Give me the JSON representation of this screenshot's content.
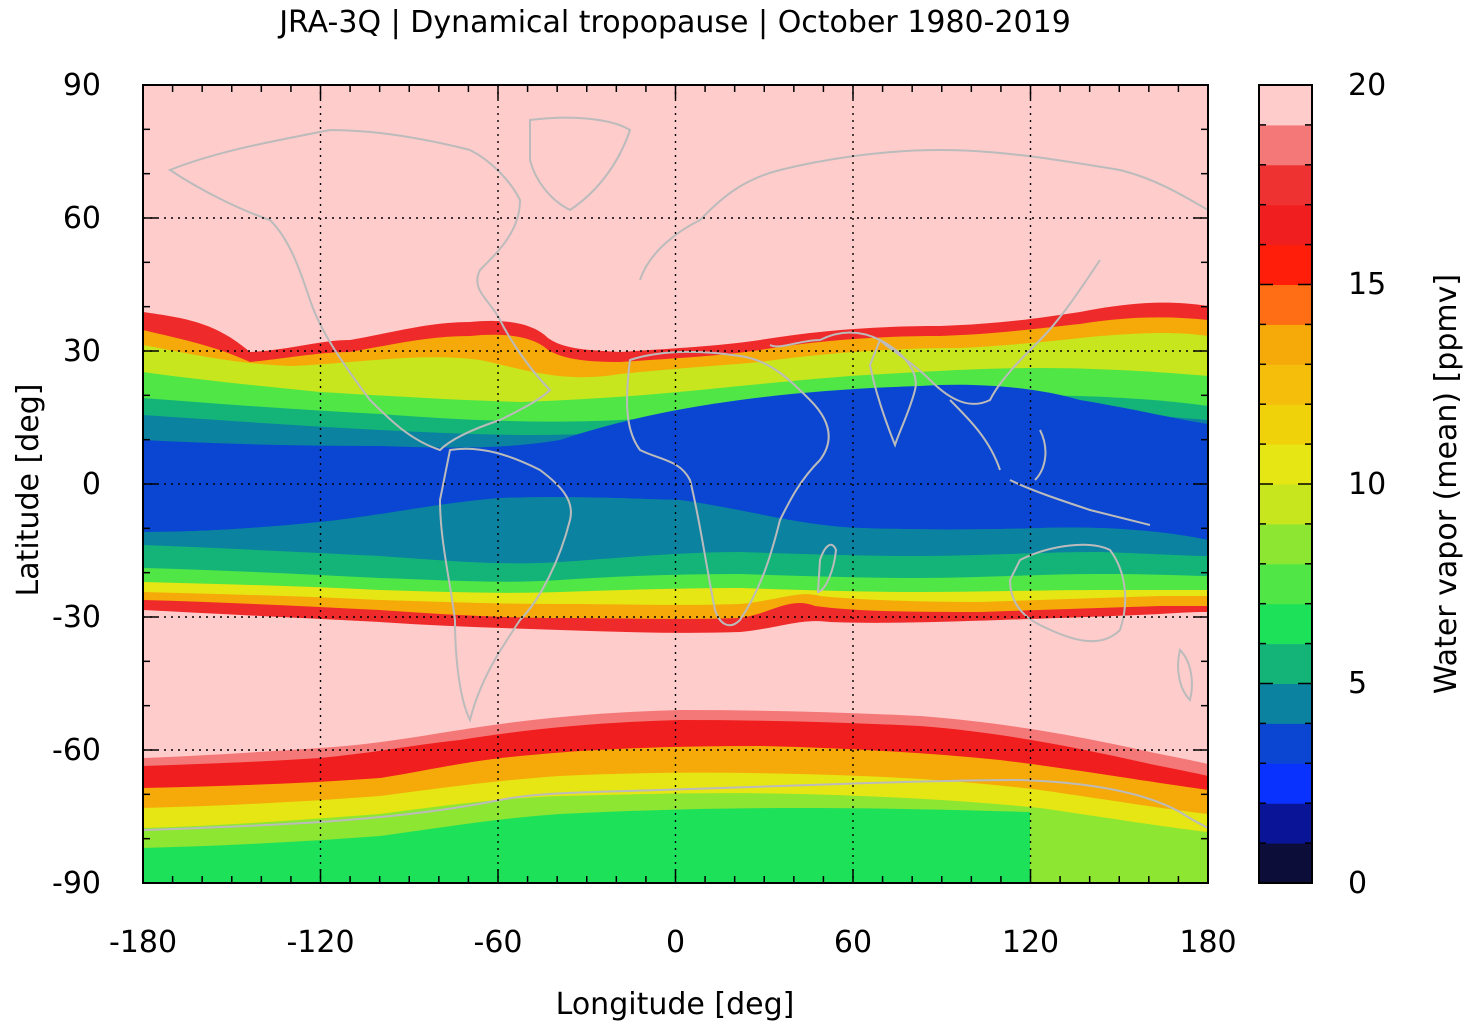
{
  "title": "JRA-3Q | Dynamical tropopause | October 1980-2019",
  "map": {
    "x_axis": {
      "label": "Longitude [deg]",
      "range": [
        -180,
        180
      ],
      "ticks": [
        "-180",
        "-120",
        "-60",
        "0",
        "60",
        "120",
        "180"
      ]
    },
    "y_axis": {
      "label": "Latitude [deg]",
      "range": [
        -90,
        90
      ],
      "ticks": [
        "90",
        "60",
        "30",
        "0",
        "-30",
        "-60",
        "-90"
      ]
    },
    "grid": "dotted",
    "background_value_color": "#ffcccc",
    "coastline_color": "#bbbbbb"
  },
  "colorbar": {
    "label": "Water vapor (mean) [ppmv]",
    "range": [
      0,
      20
    ],
    "ticks": [
      "0",
      "5",
      "10",
      "15",
      "20"
    ],
    "levels": [
      {
        "from": 0,
        "to": 1,
        "color": "#0d0d3a"
      },
      {
        "from": 1,
        "to": 2,
        "color": "#0a1496"
      },
      {
        "from": 2,
        "to": 3,
        "color": "#0a32ff"
      },
      {
        "from": 3,
        "to": 4,
        "color": "#0a46d2"
      },
      {
        "from": 4,
        "to": 5,
        "color": "#0a82a0"
      },
      {
        "from": 5,
        "to": 6,
        "color": "#14b478"
      },
      {
        "from": 6,
        "to": 7,
        "color": "#1ee15a"
      },
      {
        "from": 7,
        "to": 8,
        "color": "#50e646"
      },
      {
        "from": 8,
        "to": 9,
        "color": "#8ce632"
      },
      {
        "from": 9,
        "to": 10,
        "color": "#c8e61e"
      },
      {
        "from": 10,
        "to": 11,
        "color": "#e6e614"
      },
      {
        "from": 11,
        "to": 12,
        "color": "#f0d20a"
      },
      {
        "from": 12,
        "to": 13,
        "color": "#f5be0a"
      },
      {
        "from": 13,
        "to": 14,
        "color": "#f5aa0a"
      },
      {
        "from": 14,
        "to": 15,
        "color": "#ff6e14"
      },
      {
        "from": 15,
        "to": 16,
        "color": "#ff1e0a"
      },
      {
        "from": 16,
        "to": 17,
        "color": "#f01e1e"
      },
      {
        "from": 17,
        "to": 18,
        "color": "#ee3232"
      },
      {
        "from": 18,
        "to": 19,
        "color": "#f57878"
      },
      {
        "from": 19,
        "to": 20,
        "color": "#ffcccc"
      }
    ]
  }
}
